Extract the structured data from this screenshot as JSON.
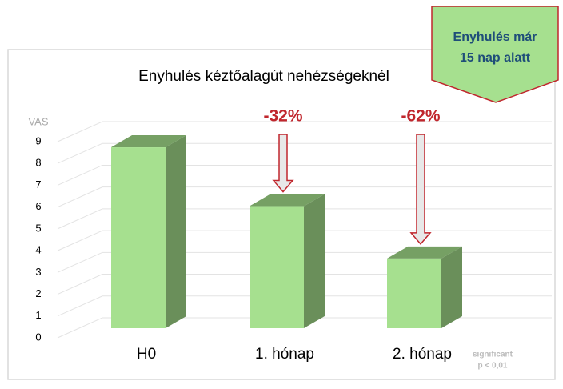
{
  "chart_data": {
    "type": "bar3d",
    "title": "Enyhulés kéztőalagút nehézségeknél",
    "y_label": "VAS",
    "categories": [
      "H0",
      "1. hónap",
      "2. hónap"
    ],
    "values": [
      8.3,
      5.6,
      3.2
    ],
    "color": "#a6e08f",
    "side_color": "#6a8f5a",
    "ylim": [
      0,
      9
    ],
    "yticks": [
      0,
      1,
      2,
      3,
      4,
      5,
      6,
      7,
      8,
      9
    ],
    "grid": true,
    "annotations": [
      {
        "text": "-32%",
        "category": 1
      },
      {
        "text": "-62%",
        "category": 2
      }
    ],
    "callout": [
      "Enyhulés már",
      "15 nap alatt"
    ],
    "footnote": [
      "significant",
      "p < 0,01"
    ]
  }
}
